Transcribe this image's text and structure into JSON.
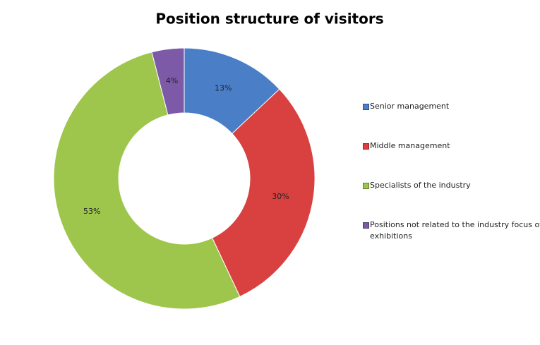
{
  "chart_data": {
    "type": "donut",
    "title": "Position structure of visitors",
    "categories": [
      "Senior management",
      "Middle management",
      "Specialists of the industry",
      "Positions not related to the industry focus of exhibitions"
    ],
    "values": [
      13,
      30,
      53,
      4
    ],
    "value_labels": [
      "13%",
      "30%",
      "53%",
      "4%"
    ],
    "colors": [
      "#4a7fc8",
      "#d8413f",
      "#9ec64c",
      "#7d5aa8"
    ],
    "legend": "right"
  }
}
